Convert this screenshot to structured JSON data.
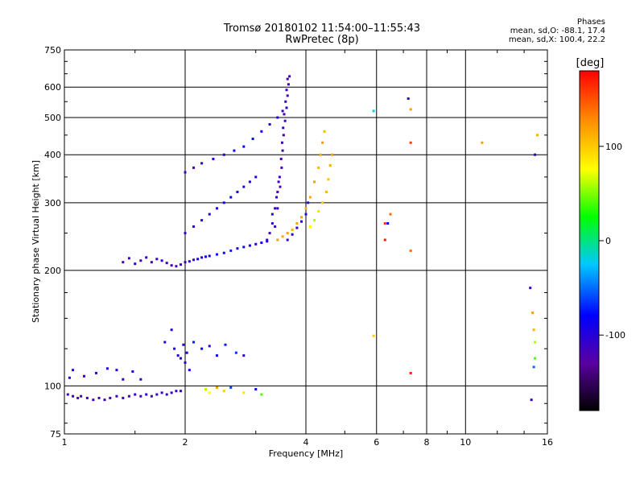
{
  "chart_data": {
    "type": "scatter",
    "title": "Tromsø 20180102 11:54:00–11:55:43",
    "subtitle": "RwPretec (8p)",
    "xlabel": "Frequency [MHz]",
    "ylabel": "Stationary phase Virtual Height [km]",
    "x_scale": "log",
    "y_scale": "log",
    "xlim": [
      1,
      16
    ],
    "ylim": [
      75,
      750
    ],
    "xticks": [
      "1",
      "2",
      "4",
      "6",
      "8",
      "10",
      "16"
    ],
    "yticks": [
      "750",
      "600",
      "500",
      "400",
      "300",
      "200",
      "100",
      "75"
    ],
    "grid": true,
    "phase_header": "Phases",
    "phase_stats": [
      "mean, sd,O: -88.1, 17.4",
      "mean, sd,X: 100.4, 22.2"
    ],
    "colorbar": {
      "label": "[deg]",
      "ticks": [
        "100",
        "0",
        "-100"
      ],
      "range": [
        -180,
        180
      ],
      "colors": [
        "#000000",
        "#5a00a0",
        "#0000ff",
        "#00c8ff",
        "#00ff00",
        "#ffff00",
        "#ff8800",
        "#ff0000"
      ]
    },
    "series": [
      {
        "values": [
          [
            1.02,
            95,
            -115
          ],
          [
            1.05,
            94,
            -112
          ],
          [
            1.08,
            93,
            -118
          ],
          [
            1.1,
            94,
            -110
          ],
          [
            1.14,
            93,
            -115
          ],
          [
            1.18,
            92,
            -112
          ],
          [
            1.22,
            93,
            -118
          ],
          [
            1.26,
            92,
            -110
          ],
          [
            1.3,
            93,
            -115
          ],
          [
            1.35,
            94,
            -112
          ],
          [
            1.4,
            93,
            -108
          ],
          [
            1.45,
            94,
            -115
          ],
          [
            1.5,
            95,
            -110
          ],
          [
            1.55,
            94,
            -112
          ],
          [
            1.6,
            95,
            -108
          ],
          [
            1.65,
            94,
            -115
          ],
          [
            1.7,
            95,
            -110
          ],
          [
            1.75,
            96,
            -112
          ],
          [
            1.8,
            95,
            -108
          ],
          [
            1.85,
            96,
            -115
          ],
          [
            1.9,
            97,
            -110
          ],
          [
            1.95,
            97,
            -112
          ],
          [
            1.03,
            105,
            -105
          ],
          [
            1.05,
            110,
            -100
          ],
          [
            1.12,
            106,
            -110
          ],
          [
            1.2,
            108,
            -105
          ],
          [
            1.28,
            111,
            -100
          ],
          [
            1.35,
            110,
            -105
          ],
          [
            1.4,
            104,
            -110
          ],
          [
            1.48,
            109,
            -100
          ],
          [
            1.55,
            104,
            -105
          ],
          [
            1.78,
            130,
            -95
          ],
          [
            1.85,
            140,
            -100
          ],
          [
            1.88,
            125,
            -90
          ],
          [
            1.92,
            120,
            -95
          ],
          [
            1.95,
            118,
            -100
          ],
          [
            1.98,
            128,
            -105
          ],
          [
            2.0,
            115,
            -95
          ],
          [
            2.02,
            122,
            -90
          ],
          [
            2.05,
            110,
            -100
          ],
          [
            2.1,
            130,
            -70
          ],
          [
            2.2,
            125,
            -80
          ],
          [
            2.3,
            127,
            -110
          ],
          [
            2.4,
            120,
            -75
          ],
          [
            2.52,
            128,
            -70
          ],
          [
            2.68,
            122,
            -65
          ],
          [
            2.8,
            120,
            -95
          ],
          [
            2.25,
            98,
            60
          ],
          [
            2.3,
            96,
            80
          ],
          [
            2.4,
            99,
            120
          ],
          [
            2.5,
            97,
            100
          ],
          [
            2.6,
            99,
            -60
          ],
          [
            2.8,
            96,
            90
          ],
          [
            3.0,
            98,
            -80
          ],
          [
            3.1,
            95,
            40
          ],
          [
            1.4,
            210,
            -110
          ],
          [
            1.45,
            215,
            -115
          ],
          [
            1.5,
            208,
            -105
          ],
          [
            1.55,
            212,
            -112
          ],
          [
            1.6,
            216,
            -108
          ],
          [
            1.65,
            210,
            -115
          ],
          [
            1.7,
            214,
            -110
          ],
          [
            1.75,
            212,
            -112
          ],
          [
            1.8,
            209,
            -105
          ],
          [
            1.85,
            206,
            -110
          ],
          [
            1.9,
            205,
            -115
          ],
          [
            1.95,
            207,
            -108
          ],
          [
            2.0,
            210,
            -112
          ],
          [
            2.05,
            211,
            -105
          ],
          [
            2.1,
            213,
            -110
          ],
          [
            2.15,
            214,
            -95
          ],
          [
            2.2,
            216,
            -100
          ],
          [
            2.25,
            217,
            -80
          ],
          [
            2.3,
            218,
            -90
          ],
          [
            2.4,
            220,
            -75
          ],
          [
            2.5,
            222,
            -85
          ],
          [
            2.6,
            225,
            -70
          ],
          [
            2.7,
            228,
            -90
          ],
          [
            2.8,
            230,
            -75
          ],
          [
            2.9,
            232,
            -80
          ],
          [
            3.0,
            234,
            -95
          ],
          [
            3.1,
            236,
            -85
          ],
          [
            3.2,
            238,
            -100
          ],
          [
            2.0,
            250,
            -110
          ],
          [
            2.1,
            260,
            -105
          ],
          [
            2.2,
            270,
            -100
          ],
          [
            2.3,
            280,
            -95
          ],
          [
            2.4,
            290,
            -90
          ],
          [
            2.5,
            300,
            -85
          ],
          [
            2.6,
            310,
            -80
          ],
          [
            2.7,
            320,
            -85
          ],
          [
            2.8,
            330,
            -90
          ],
          [
            2.9,
            340,
            -100
          ],
          [
            3.0,
            350,
            -95
          ],
          [
            2.0,
            360,
            -115
          ],
          [
            2.1,
            370,
            -110
          ],
          [
            2.2,
            380,
            -105
          ],
          [
            2.35,
            390,
            -95
          ],
          [
            2.5,
            400,
            -90
          ],
          [
            2.65,
            410,
            -85
          ],
          [
            2.8,
            420,
            -80
          ],
          [
            2.95,
            440,
            -75
          ],
          [
            3.1,
            460,
            -85
          ],
          [
            3.25,
            480,
            -90
          ],
          [
            3.4,
            500,
            -100
          ],
          [
            3.5,
            520,
            -110
          ],
          [
            3.35,
            260,
            -115
          ],
          [
            3.4,
            290,
            -110
          ],
          [
            3.45,
            330,
            -120
          ],
          [
            3.48,
            370,
            -115
          ],
          [
            3.5,
            410,
            -110
          ],
          [
            3.52,
            450,
            -120
          ],
          [
            3.55,
            490,
            -115
          ],
          [
            3.58,
            530,
            -110
          ],
          [
            3.6,
            570,
            -120
          ],
          [
            3.62,
            610,
            -115
          ],
          [
            3.64,
            640,
            -110
          ],
          [
            3.3,
            280,
            -100
          ],
          [
            3.38,
            310,
            -110
          ],
          [
            3.44,
            350,
            -115
          ],
          [
            3.47,
            390,
            -120
          ],
          [
            3.49,
            430,
            -110
          ],
          [
            3.51,
            470,
            -115
          ],
          [
            3.53,
            510,
            -120
          ],
          [
            3.56,
            550,
            -110
          ],
          [
            3.58,
            590,
            -115
          ],
          [
            3.6,
            630,
            -120
          ],
          [
            3.2,
            240,
            -110
          ],
          [
            3.25,
            250,
            -115
          ],
          [
            3.3,
            265,
            -105
          ],
          [
            3.35,
            290,
            -110
          ],
          [
            3.4,
            320,
            -120
          ],
          [
            3.42,
            340,
            -115
          ],
          [
            3.4,
            240,
            120
          ],
          [
            3.5,
            245,
            115
          ],
          [
            3.6,
            250,
            120
          ],
          [
            3.7,
            255,
            110
          ],
          [
            3.8,
            265,
            115
          ],
          [
            3.9,
            275,
            120
          ],
          [
            4.0,
            290,
            110
          ],
          [
            4.1,
            310,
            115
          ],
          [
            4.2,
            340,
            120
          ],
          [
            4.3,
            370,
            110
          ],
          [
            4.35,
            400,
            115
          ],
          [
            4.4,
            430,
            120
          ],
          [
            4.45,
            460,
            110
          ],
          [
            3.6,
            240,
            -110
          ],
          [
            3.7,
            248,
            -105
          ],
          [
            3.8,
            258,
            -110
          ],
          [
            3.9,
            268,
            -100
          ],
          [
            4.0,
            280,
            -105
          ],
          [
            4.05,
            300,
            -110
          ],
          [
            4.1,
            260,
            80
          ],
          [
            4.2,
            270,
            60
          ],
          [
            4.3,
            285,
            90
          ],
          [
            4.4,
            300,
            100
          ],
          [
            4.5,
            320,
            110
          ],
          [
            4.55,
            345,
            105
          ],
          [
            4.6,
            375,
            115
          ],
          [
            4.65,
            400,
            120
          ],
          [
            5.9,
            520,
            -20
          ],
          [
            6.3,
            265,
            160
          ],
          [
            6.3,
            240,
            170
          ],
          [
            6.4,
            265,
            -80
          ],
          [
            6.5,
            280,
            140
          ],
          [
            7.2,
            560,
            -110
          ],
          [
            7.3,
            525,
            120
          ],
          [
            7.3,
            430,
            160
          ],
          [
            7.3,
            225,
            140
          ],
          [
            7.3,
            108,
            170
          ],
          [
            5.9,
            135,
            100
          ],
          [
            11.0,
            430,
            120
          ],
          [
            14.5,
            180,
            -110
          ],
          [
            14.7,
            155,
            120
          ],
          [
            14.8,
            140,
            110
          ],
          [
            14.9,
            130,
            60
          ],
          [
            14.9,
            118,
            40
          ],
          [
            14.8,
            112,
            -50
          ],
          [
            14.6,
            92,
            -110
          ],
          [
            14.9,
            400,
            -100
          ],
          [
            15.1,
            450,
            110
          ]
        ]
      }
    ]
  }
}
